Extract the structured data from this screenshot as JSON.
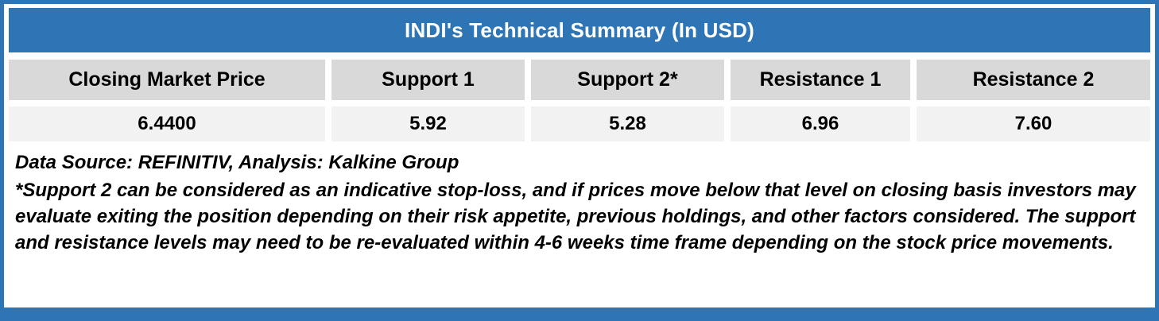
{
  "table": {
    "title": "INDI's Technical Summary (In USD)",
    "columns": [
      "Closing Market Price",
      "Support 1",
      "Support 2*",
      "Resistance 1",
      "Resistance 2"
    ],
    "values": [
      "6.4400",
      "5.92",
      "5.28",
      "6.96",
      "7.60"
    ]
  },
  "notes": {
    "data_source": "Data Source: REFINITIV, Analysis: Kalkine Group",
    "footnote": "*Support 2 can be considered as an indicative stop-loss, and if prices move below that level on closing basis investors may evaluate exiting the position depending on their risk appetite, previous holdings, and other factors considered. The support and resistance levels may need to be re-evaluated within 4-6 weeks time frame depending on the stock price movements."
  },
  "colors": {
    "accent_blue": "#2E75B6",
    "header_gray": "#D9D9D9",
    "value_gray": "#F2F2F2"
  }
}
